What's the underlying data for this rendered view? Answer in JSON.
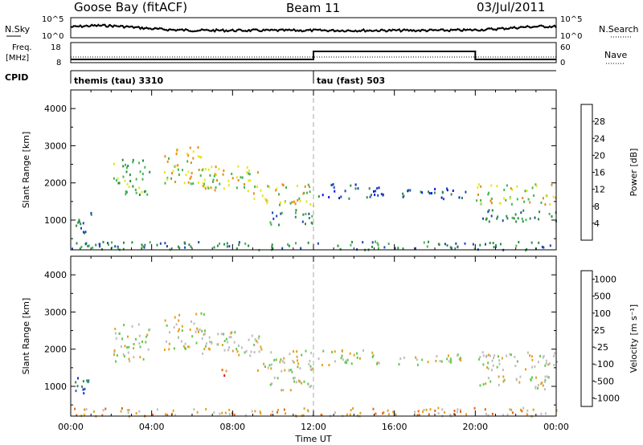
{
  "header": {
    "station": "Goose Bay (fitACF)",
    "beam": "Beam 11",
    "date": "03/Jul/2011"
  },
  "strips": {
    "nsky_label": "N.Sky",
    "nsearch_label": "N.Search",
    "freq_label_line1": "Freq.",
    "freq_label_line2": "[MHz]",
    "nave_label": "Nave",
    "cpid_label": "CPID",
    "noise_left_ticks": [
      "10^5",
      "10^0"
    ],
    "noise_right_ticks": [
      "10^5",
      "10^0"
    ],
    "freq_left_ticks": [
      "18",
      "8"
    ],
    "freq_right_ticks": [
      "60",
      "0"
    ],
    "cpid_segments": [
      {
        "label": "themis (tau) 3310",
        "start_hour": 0,
        "end_hour": 12
      },
      {
        "label": "tau (fast) 503",
        "start_hour": 12,
        "end_hour": 20
      }
    ]
  },
  "chart_data": [
    {
      "type": "heatmap",
      "name": "power",
      "ylabel": "Slant Range [km]",
      "yticks": [
        "1000",
        "2000",
        "3000",
        "4000"
      ],
      "ylim": [
        200,
        4500
      ],
      "xlim": [
        0,
        24
      ],
      "colorbar_label": "Power [dB]",
      "colorbar_ticks": [
        "4",
        "8",
        "12",
        "16",
        "20",
        "24",
        "28"
      ],
      "colors": [
        "#0a14e6",
        "#1e46b4",
        "#2d8c46",
        "#46b450",
        "#e6e61e",
        "#e68c14",
        "#e64614",
        "#dc0a0a"
      ],
      "echo_regions": [
        {
          "t0": 0.2,
          "t1": 1.0,
          "r0": 650,
          "r1": 1300,
          "level": 2
        },
        {
          "t0": 2.1,
          "t1": 3.9,
          "r0": 1700,
          "r1": 2700,
          "level": 3
        },
        {
          "t0": 4.6,
          "t1": 6.6,
          "r0": 2000,
          "r1": 3000,
          "level": 4
        },
        {
          "t0": 6.2,
          "t1": 9.4,
          "r0": 1800,
          "r1": 2500,
          "level": 4
        },
        {
          "t0": 9.0,
          "t1": 12.0,
          "r0": 1400,
          "r1": 2000,
          "level": 4
        },
        {
          "t0": 9.8,
          "t1": 12.0,
          "r0": 900,
          "r1": 1300,
          "level": 2
        },
        {
          "t0": 12.2,
          "t1": 15.5,
          "r0": 1600,
          "r1": 2000,
          "level": 1
        },
        {
          "t0": 16.0,
          "t1": 19.6,
          "r0": 1600,
          "r1": 1900,
          "level": 1
        },
        {
          "t0": 20.0,
          "t1": 24.0,
          "r0": 1450,
          "r1": 2000,
          "level": 4
        },
        {
          "t0": 20.0,
          "t1": 24.0,
          "r0": 950,
          "r1": 1300,
          "level": 2
        },
        {
          "t0": 0.0,
          "t1": 24.0,
          "r0": 220,
          "r1": 450,
          "level": 2
        }
      ]
    },
    {
      "type": "heatmap",
      "name": "velocity",
      "ylabel": "Slant Range [km]",
      "yticks": [
        "1000",
        "2000",
        "3000",
        "4000"
      ],
      "ylim": [
        200,
        4500
      ],
      "xlim": [
        0,
        24
      ],
      "xticks": [
        "00:00",
        "04:00",
        "08:00",
        "12:00",
        "16:00",
        "20:00",
        "00:00"
      ],
      "xlabel": "Time UT",
      "colorbar_label": "Velocity [m s⁻¹]",
      "colorbar_ticks": [
        "1000",
        "500",
        "100",
        "25",
        "-25",
        "-100",
        "-500",
        "-1000"
      ],
      "colors": [
        "#1e32c8",
        "#2d64b4",
        "#2d8c46",
        "#64c850",
        "#bebebe",
        "#e6a01e",
        "#e66414",
        "#dc1414"
      ],
      "echo_regions": [
        {
          "t0": 0.2,
          "t1": 1.0,
          "r0": 650,
          "r1": 1300,
          "level": 1
        },
        {
          "t0": 2.1,
          "t1": 3.9,
          "r0": 1700,
          "r1": 2700,
          "level": 4
        },
        {
          "t0": 4.6,
          "t1": 6.6,
          "r0": 2000,
          "r1": 3000,
          "level": 4
        },
        {
          "t0": 6.2,
          "t1": 9.4,
          "r0": 1800,
          "r1": 2500,
          "level": 4
        },
        {
          "t0": 9.0,
          "t1": 12.0,
          "r0": 1400,
          "r1": 2000,
          "level": 4
        },
        {
          "t0": 9.8,
          "t1": 12.0,
          "r0": 900,
          "r1": 1300,
          "level": 4
        },
        {
          "t0": 12.2,
          "t1": 15.5,
          "r0": 1600,
          "r1": 2000,
          "level": 4
        },
        {
          "t0": 16.0,
          "t1": 19.6,
          "r0": 1600,
          "r1": 1900,
          "level": 4
        },
        {
          "t0": 20.0,
          "t1": 24.0,
          "r0": 1450,
          "r1": 2000,
          "level": 4
        },
        {
          "t0": 20.0,
          "t1": 24.0,
          "r0": 950,
          "r1": 1300,
          "level": 4
        },
        {
          "t0": 7.3,
          "t1": 7.9,
          "r0": 1250,
          "r1": 1500,
          "level": 6
        },
        {
          "t0": 0.0,
          "t1": 24.0,
          "r0": 220,
          "r1": 450,
          "level": 5
        }
      ]
    }
  ]
}
